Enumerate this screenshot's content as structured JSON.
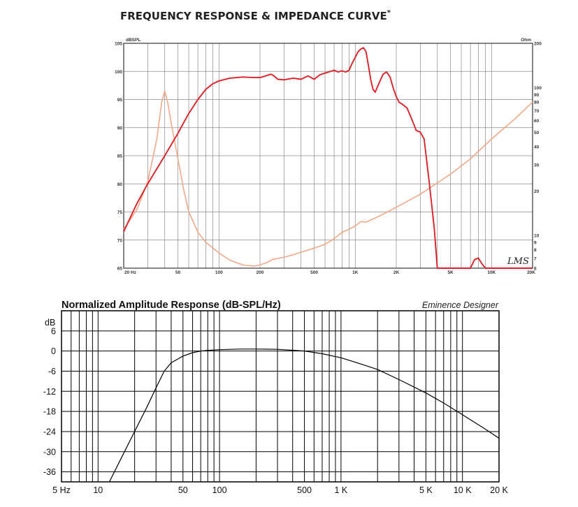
{
  "chart_data": [
    {
      "type": "line",
      "title": "FREQUENCY RESPONSE & IMPEDANCE CURVE",
      "title_mark": "*",
      "ylabel": "dBSPL",
      "y2label": "Ohm",
      "xscale": "log",
      "xlim": [
        20,
        20000
      ],
      "ylim": [
        65,
        105
      ],
      "y2lim": [
        6,
        200
      ],
      "y2scale": "log",
      "grid": true,
      "x_ticks": [
        {
          "v": 20,
          "label": "20 Hz"
        },
        {
          "v": 50,
          "label": "50"
        },
        {
          "v": 100,
          "label": "100"
        },
        {
          "v": 200,
          "label": "200"
        },
        {
          "v": 500,
          "label": "500"
        },
        {
          "v": 1000,
          "label": "1K"
        },
        {
          "v": 2000,
          "label": "2K"
        },
        {
          "v": 5000,
          "label": "5K"
        },
        {
          "v": 10000,
          "label": "10K"
        },
        {
          "v": 20000,
          "label": "20K"
        }
      ],
      "y_ticks": [
        {
          "v": 105,
          "label": "105"
        },
        {
          "v": 100,
          "label": "100"
        },
        {
          "v": 95,
          "label": "95"
        },
        {
          "v": 90,
          "label": "90"
        },
        {
          "v": 85,
          "label": "85"
        },
        {
          "v": 80,
          "label": "80"
        },
        {
          "v": 75,
          "label": "75"
        },
        {
          "v": 70,
          "label": "70"
        },
        {
          "v": 65,
          "label": "65"
        }
      ],
      "y2_ticks": [
        {
          "v": 200,
          "label": "200"
        },
        {
          "v": 100,
          "label": "100"
        },
        {
          "v": 90,
          "label": "90"
        },
        {
          "v": 80,
          "label": "80"
        },
        {
          "v": 70,
          "label": "70"
        },
        {
          "v": 60,
          "label": "60"
        },
        {
          "v": 50,
          "label": "50"
        },
        {
          "v": 40,
          "label": "40"
        },
        {
          "v": 30,
          "label": "30"
        },
        {
          "v": 20,
          "label": "20"
        },
        {
          "v": 10,
          "label": "10"
        },
        {
          "v": 9,
          "label": "9"
        },
        {
          "v": 8,
          "label": "8"
        },
        {
          "v": 7,
          "label": "7"
        },
        {
          "v": 6,
          "label": "6"
        }
      ],
      "watermark": "LMS",
      "series": [
        {
          "axis": "left",
          "color": "#e02027",
          "x": [
            20,
            25,
            30,
            40,
            50,
            60,
            70,
            80,
            90,
            100,
            120,
            150,
            180,
            200,
            220,
            240,
            250,
            270,
            300,
            350,
            400,
            450,
            500,
            550,
            600,
            700,
            750,
            800,
            850,
            900,
            950,
            1000,
            1050,
            1100,
            1150,
            1200,
            1250,
            1300,
            1350,
            1400,
            1500,
            1600,
            1700,
            1800,
            1900,
            2000,
            2100,
            2200,
            2400,
            2600,
            2800,
            3000,
            3200,
            3500,
            3800,
            4000,
            4500,
            5000,
            6000,
            7000,
            7500,
            8000,
            8500,
            9000,
            10000,
            15000,
            20000
          ],
          "y": [
            71.5,
            76.5,
            80,
            85,
            89,
            92.5,
            95,
            96.8,
            97.8,
            98.3,
            98.8,
            99,
            98.9,
            98.9,
            99.2,
            99.5,
            99.3,
            98.6,
            98.5,
            98.8,
            98.6,
            99.2,
            98.6,
            99.4,
            99.7,
            100.2,
            99.9,
            100.1,
            99.9,
            100.2,
            101.5,
            102.5,
            103.5,
            104,
            104.2,
            103.5,
            101,
            98.5,
            96.8,
            96.3,
            98,
            99.5,
            99.9,
            99,
            97,
            95.5,
            94.5,
            94.2,
            93.5,
            91.5,
            89.5,
            89.2,
            88,
            80,
            72,
            65,
            65,
            65,
            65,
            65,
            66.5,
            66.8,
            65.8,
            65,
            65,
            65,
            65
          ]
        },
        {
          "axis": "right",
          "color": "#f4a888",
          "x": [
            20,
            25,
            30,
            35,
            38,
            40,
            42,
            45,
            50,
            55,
            60,
            70,
            80,
            100,
            120,
            150,
            180,
            200,
            230,
            250,
            300,
            350,
            400,
            500,
            600,
            700,
            800,
            900,
            1000,
            1100,
            1200,
            1500,
            2000,
            3000,
            5000,
            7000,
            10000,
            15000,
            20000
          ],
          "y": [
            11,
            15,
            23,
            45,
            80,
            95,
            80,
            55,
            33,
            20.5,
            14.5,
            10.5,
            9,
            7.6,
            6.8,
            6.3,
            6.2,
            6.3,
            6.6,
            6.9,
            7.1,
            7.4,
            7.7,
            8.2,
            8.7,
            9.5,
            10.5,
            11,
            11.6,
            12.4,
            12.3,
            13.5,
            15.5,
            19,
            26,
            33,
            45,
            62,
            80
          ]
        }
      ]
    },
    {
      "type": "line",
      "title": "Normalized Amplitude Response (dB-SPL/Hz)",
      "brand": "Eminence Designer",
      "ylabel": "dB",
      "xscale": "log",
      "xlim": [
        5,
        20000
      ],
      "ylim": [
        -39,
        12
      ],
      "grid": true,
      "x_ticks": [
        {
          "v": 5,
          "label": "5 Hz"
        },
        {
          "v": 10,
          "label": "10"
        },
        {
          "v": 50,
          "label": "50"
        },
        {
          "v": 100,
          "label": "100"
        },
        {
          "v": 500,
          "label": "500"
        },
        {
          "v": 1000,
          "label": "1 K"
        },
        {
          "v": 5000,
          "label": "5 K"
        },
        {
          "v": 10000,
          "label": "10 K"
        },
        {
          "v": 20000,
          "label": "20 K"
        }
      ],
      "y_ticks": [
        {
          "v": 6,
          "label": "6"
        },
        {
          "v": 0,
          "label": "0"
        },
        {
          "v": -6,
          "label": "-6"
        },
        {
          "v": -12,
          "label": "-12"
        },
        {
          "v": -18,
          "label": "-18"
        },
        {
          "v": -24,
          "label": "-24"
        },
        {
          "v": -30,
          "label": "-30"
        },
        {
          "v": -36,
          "label": "-36"
        }
      ],
      "series": [
        {
          "color": "#000000",
          "x": [
            12,
            15,
            20,
            25,
            30,
            35,
            40,
            50,
            60,
            70,
            80,
            100,
            150,
            200,
            300,
            500,
            700,
            1000,
            1500,
            2000,
            3000,
            5000,
            7000,
            10000,
            15000,
            20000
          ],
          "y": [
            -40,
            -33,
            -24,
            -17,
            -11,
            -6,
            -3.5,
            -1.5,
            -0.5,
            0,
            0.2,
            0.4,
            0.6,
            0.6,
            0.5,
            0,
            -0.8,
            -2,
            -4,
            -5.5,
            -8.5,
            -12.5,
            -15.5,
            -19,
            -23,
            -26
          ]
        }
      ]
    }
  ]
}
